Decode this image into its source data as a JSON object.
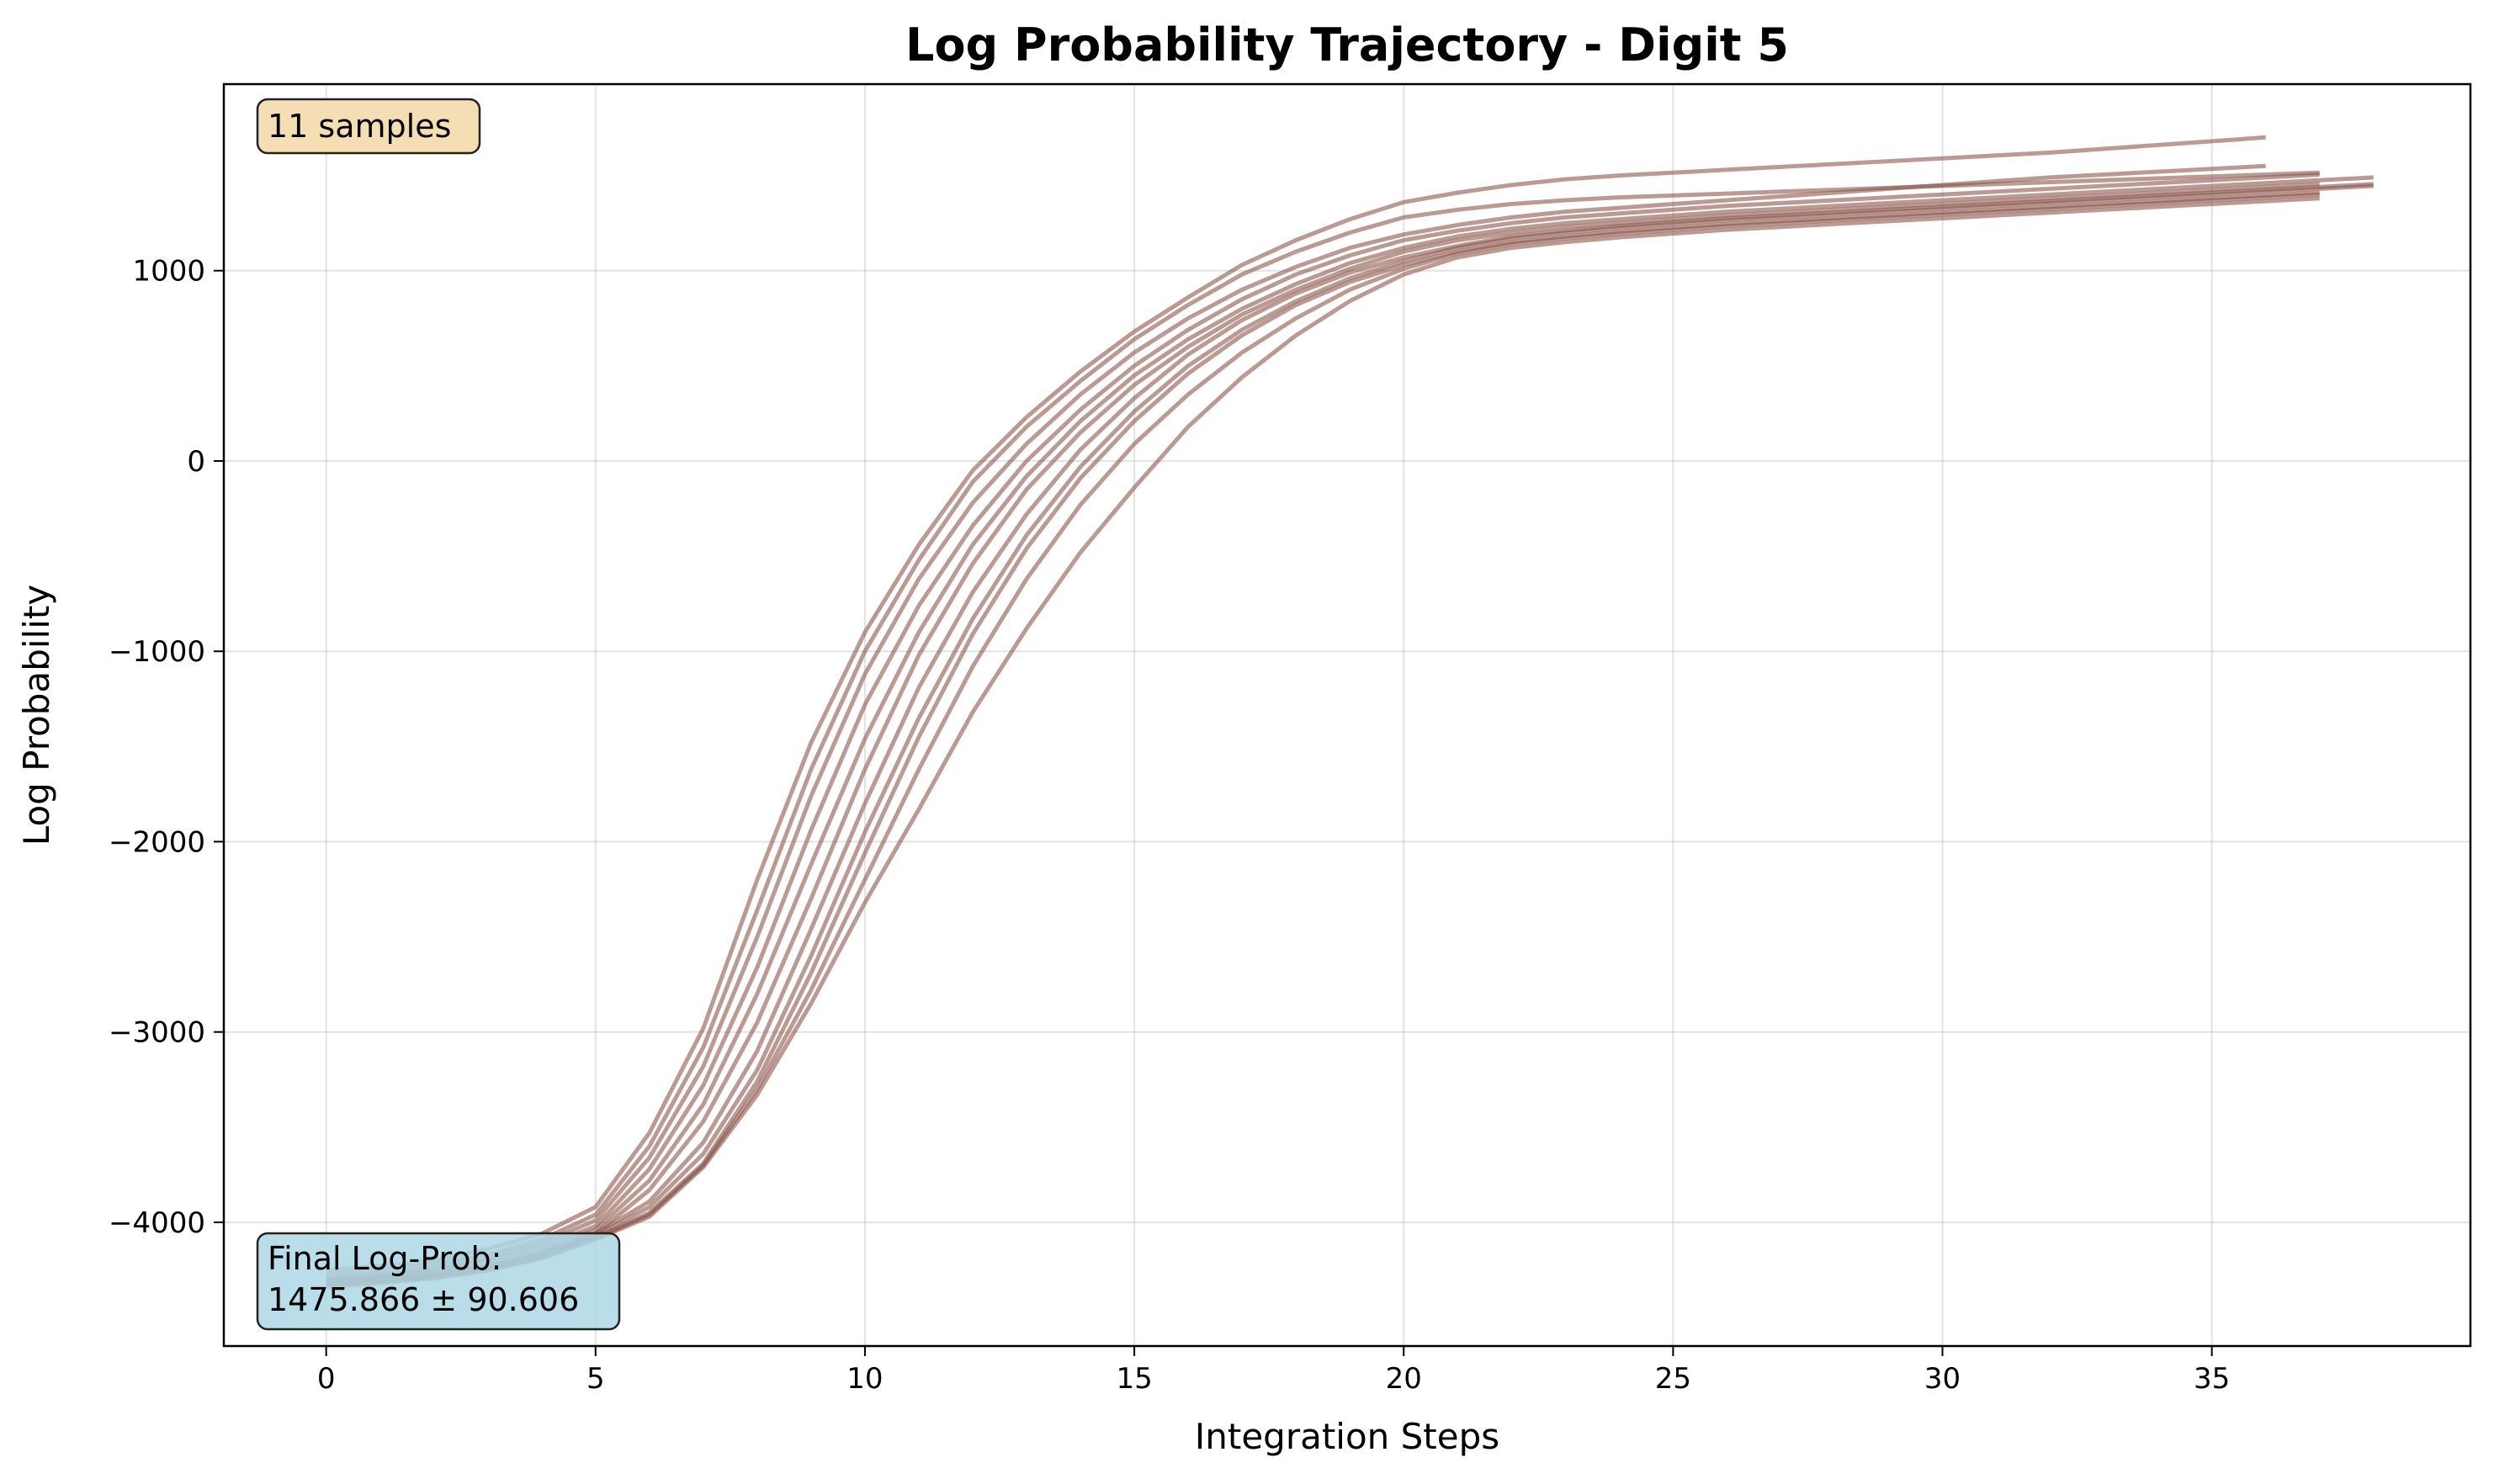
{
  "chart_data": {
    "type": "line",
    "title": "Log Probability Trajectory - Digit 5",
    "xlabel": "Integration Steps",
    "ylabel": "Log Probability",
    "xlim": [
      -1.9,
      39.8
    ],
    "ylim": [
      -4650,
      1980
    ],
    "xticks": [
      0,
      5,
      10,
      15,
      20,
      25,
      30,
      35
    ],
    "yticks": [
      -4000,
      -3000,
      -2000,
      -1000,
      0,
      1000
    ],
    "grid": true,
    "line_color": "#8c564b",
    "line_alpha": 0.6,
    "samples_label": "11 samples",
    "final_label_line1": "Final Log-Prob:",
    "final_label_line2": "1475.866 ± 90.606",
    "series": [
      {
        "x": [
          0,
          1,
          2,
          3,
          4,
          5,
          6,
          7,
          8,
          9,
          10,
          11,
          12,
          13,
          14,
          15,
          16,
          17,
          18,
          19,
          20,
          21,
          22,
          23,
          24,
          25,
          26,
          27,
          28,
          29,
          30,
          31,
          32,
          33,
          34,
          35,
          36
        ],
        "values": [
          -4250,
          -4230,
          -4200,
          -4140,
          -4060,
          -3920,
          -3530,
          -2980,
          -2200,
          -1480,
          -900,
          -440,
          -50,
          230,
          470,
          680,
          860,
          1030,
          1160,
          1270,
          1360,
          1410,
          1450,
          1480,
          1500,
          1515,
          1530,
          1545,
          1560,
          1575,
          1590,
          1605,
          1620,
          1640,
          1660,
          1680,
          1700
        ]
      },
      {
        "x": [
          0,
          1,
          2,
          3,
          4,
          5,
          6,
          7,
          8,
          9,
          10,
          11,
          12,
          13,
          14,
          15,
          16,
          17,
          18,
          19,
          20,
          21,
          22,
          23,
          24,
          25,
          26,
          27,
          28,
          29,
          30,
          31,
          32,
          33,
          34,
          35,
          36,
          37
        ],
        "values": [
          -4270,
          -4250,
          -4220,
          -4170,
          -4090,
          -3960,
          -3600,
          -3080,
          -2360,
          -1620,
          -1000,
          -520,
          -110,
          180,
          420,
          640,
          820,
          980,
          1100,
          1200,
          1280,
          1320,
          1350,
          1370,
          1385,
          1395,
          1405,
          1415,
          1425,
          1435,
          1445,
          1455,
          1465,
          1475,
          1485,
          1495,
          1505,
          1515
        ]
      },
      {
        "x": [
          0,
          1,
          2,
          3,
          4,
          5,
          6,
          7,
          8,
          9,
          10,
          11,
          12,
          13,
          14,
          15,
          16,
          17,
          18,
          19,
          20,
          21,
          22,
          23,
          24,
          25,
          26,
          27,
          28,
          29,
          30,
          31,
          32,
          33,
          34,
          35,
          36
        ],
        "values": [
          -4290,
          -4270,
          -4240,
          -4190,
          -4110,
          -3990,
          -3660,
          -3180,
          -2500,
          -1760,
          -1120,
          -620,
          -220,
          90,
          350,
          570,
          750,
          900,
          1020,
          1120,
          1190,
          1240,
          1280,
          1310,
          1330,
          1350,
          1370,
          1390,
          1410,
          1430,
          1450,
          1470,
          1490,
          1505,
          1520,
          1535,
          1550
        ]
      },
      {
        "x": [
          0,
          1,
          2,
          3,
          4,
          5,
          6,
          7,
          8,
          9,
          10,
          11,
          12,
          13,
          14,
          15,
          16,
          17,
          18,
          19,
          20,
          21,
          22,
          23,
          24,
          25,
          26,
          27,
          28,
          29,
          30,
          31,
          32,
          33,
          34,
          35,
          36,
          37
        ],
        "values": [
          -4300,
          -4280,
          -4250,
          -4200,
          -4130,
          -4020,
          -3720,
          -3280,
          -2660,
          -1940,
          -1280,
          -760,
          -340,
          0,
          270,
          500,
          690,
          850,
          980,
          1080,
          1160,
          1210,
          1250,
          1280,
          1300,
          1320,
          1340,
          1355,
          1370,
          1385,
          1400,
          1415,
          1430,
          1445,
          1460,
          1475,
          1490,
          1505
        ]
      },
      {
        "x": [
          0,
          1,
          2,
          3,
          4,
          5,
          6,
          7,
          8,
          9,
          10,
          11,
          12,
          13,
          14,
          15,
          16,
          17,
          18,
          19,
          20,
          21,
          22,
          23,
          24,
          25,
          26,
          27,
          28,
          29,
          30,
          31,
          32,
          33,
          34,
          35,
          36,
          37,
          38
        ],
        "values": [
          -4300,
          -4285,
          -4260,
          -4220,
          -4150,
          -4040,
          -3780,
          -3380,
          -2800,
          -2120,
          -1460,
          -900,
          -440,
          -80,
          210,
          450,
          640,
          800,
          930,
          1040,
          1120,
          1180,
          1220,
          1250,
          1270,
          1290,
          1310,
          1325,
          1340,
          1355,
          1370,
          1385,
          1400,
          1415,
          1430,
          1445,
          1460,
          1475,
          1490
        ]
      },
      {
        "x": [
          0,
          1,
          2,
          3,
          4,
          5,
          6,
          7,
          8,
          9,
          10,
          11,
          12,
          13,
          14,
          15,
          16,
          17,
          18,
          19,
          20,
          21,
          22,
          23,
          24,
          25,
          26,
          27,
          28,
          29,
          30,
          31,
          32,
          33,
          34,
          35,
          36,
          37
        ],
        "values": [
          -4310,
          -4295,
          -4270,
          -4230,
          -4160,
          -4060,
          -3830,
          -3470,
          -2950,
          -2300,
          -1620,
          -1020,
          -540,
          -150,
          150,
          400,
          600,
          770,
          900,
          1010,
          1100,
          1160,
          1200,
          1230,
          1250,
          1270,
          1290,
          1305,
          1320,
          1335,
          1350,
          1365,
          1380,
          1395,
          1410,
          1425,
          1440,
          1455
        ]
      },
      {
        "x": [
          0,
          1,
          2,
          3,
          4,
          5,
          6,
          7,
          8,
          9,
          10,
          11,
          12,
          13,
          14,
          15,
          16,
          17,
          18,
          19,
          20,
          21,
          22,
          23,
          24,
          25,
          26,
          27,
          28,
          29,
          30,
          31,
          32,
          33,
          34,
          35,
          36,
          37,
          38
        ],
        "values": [
          -4320,
          -4300,
          -4275,
          -4235,
          -4165,
          -4060,
          -3890,
          -3580,
          -3100,
          -2460,
          -1800,
          -1190,
          -690,
          -280,
          60,
          330,
          560,
          740,
          880,
          990,
          1070,
          1130,
          1180,
          1210,
          1235,
          1255,
          1275,
          1290,
          1305,
          1320,
          1335,
          1350,
          1365,
          1380,
          1395,
          1410,
          1425,
          1440,
          1455
        ]
      },
      {
        "x": [
          0,
          1,
          2,
          3,
          4,
          5,
          6,
          7,
          8,
          9,
          10,
          11,
          12,
          13,
          14,
          15,
          16,
          17,
          18,
          19,
          20,
          21,
          22,
          23,
          24,
          25,
          26,
          27,
          28,
          29,
          30,
          31,
          32,
          33,
          34,
          35,
          36,
          37,
          38
        ],
        "values": [
          -4320,
          -4305,
          -4280,
          -4240,
          -4170,
          -4070,
          -3920,
          -3640,
          -3200,
          -2600,
          -1950,
          -1350,
          -830,
          -390,
          -30,
          260,
          500,
          690,
          840,
          960,
          1050,
          1120,
          1170,
          1200,
          1225,
          1245,
          1265,
          1280,
          1295,
          1310,
          1325,
          1340,
          1355,
          1370,
          1385,
          1400,
          1415,
          1430,
          1445
        ]
      },
      {
        "x": [
          0,
          1,
          2,
          3,
          4,
          5,
          6,
          7,
          8,
          9,
          10,
          11,
          12,
          13,
          14,
          15,
          16,
          17,
          18,
          19,
          20,
          21,
          22,
          23,
          24,
          25,
          26,
          27,
          28,
          29,
          30,
          31,
          32,
          33,
          34,
          35,
          36,
          37
        ],
        "values": [
          -4330,
          -4310,
          -4285,
          -4245,
          -4180,
          -4080,
          -3950,
          -3690,
          -3260,
          -2690,
          -2060,
          -1450,
          -910,
          -460,
          -90,
          210,
          460,
          660,
          820,
          940,
          1030,
          1100,
          1150,
          1180,
          1205,
          1225,
          1245,
          1260,
          1275,
          1290,
          1305,
          1320,
          1335,
          1350,
          1365,
          1380,
          1395,
          1410
        ]
      },
      {
        "x": [
          0,
          1,
          2,
          3,
          4,
          5,
          6,
          7,
          8,
          9,
          10,
          11,
          12,
          13,
          14,
          15,
          16,
          17,
          18,
          19,
          20,
          21,
          22,
          23,
          24,
          25,
          26,
          27,
          28,
          29,
          30,
          31,
          32,
          33,
          34,
          35,
          36,
          37
        ],
        "values": [
          -4330,
          -4315,
          -4290,
          -4250,
          -4185,
          -4085,
          -3960,
          -3700,
          -3300,
          -2780,
          -2200,
          -1620,
          -1080,
          -620,
          -230,
          90,
          350,
          570,
          750,
          900,
          1010,
          1090,
          1140,
          1170,
          1195,
          1215,
          1235,
          1250,
          1265,
          1280,
          1295,
          1310,
          1325,
          1340,
          1355,
          1370,
          1385,
          1400
        ]
      },
      {
        "x": [
          0,
          1,
          2,
          3,
          4,
          5,
          6,
          7,
          8,
          9,
          10,
          11,
          12,
          13,
          14,
          15,
          16,
          17,
          18,
          19,
          20,
          21,
          22,
          23,
          24,
          25,
          26,
          27,
          28,
          29,
          30,
          31,
          32,
          33,
          34,
          35,
          36,
          37
        ],
        "values": [
          -4340,
          -4320,
          -4295,
          -4255,
          -4190,
          -4090,
          -3970,
          -3710,
          -3330,
          -2850,
          -2320,
          -1830,
          -1320,
          -880,
          -480,
          -140,
          180,
          440,
          660,
          840,
          980,
          1070,
          1120,
          1150,
          1175,
          1195,
          1215,
          1230,
          1245,
          1260,
          1275,
          1290,
          1305,
          1320,
          1335,
          1350,
          1365,
          1380
        ]
      }
    ]
  }
}
